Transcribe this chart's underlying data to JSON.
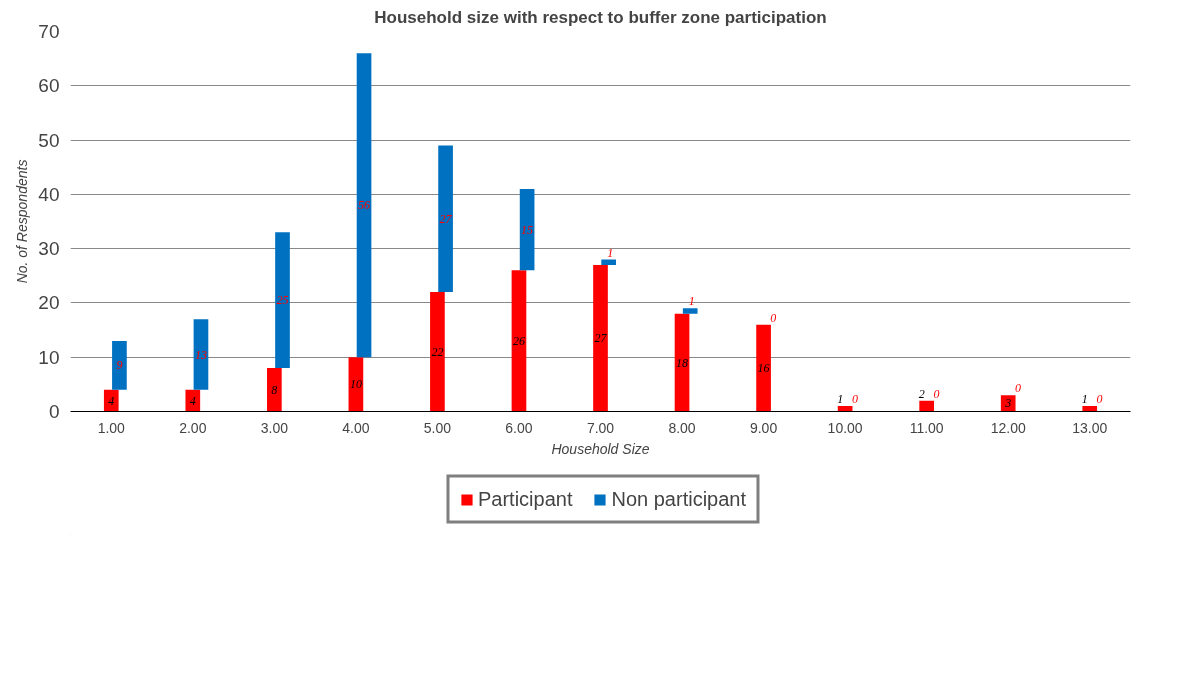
{
  "chart_data": {
    "type": "bar",
    "title": "Household size with respect to buffer zone participation",
    "xlabel": "Household Size",
    "ylabel": "No. of Respondents",
    "categories": [
      "1.00",
      "2.00",
      "3.00",
      "4.00",
      "5.00",
      "6.00",
      "7.00",
      "8.00",
      "9.00",
      "10.00",
      "11.00",
      "12.00",
      "13.00"
    ],
    "stacked": true,
    "series": [
      {
        "name": "Participant",
        "color": "#ff0000",
        "values": [
          4,
          4,
          8,
          10,
          22,
          26,
          27,
          18,
          16,
          1,
          2,
          3,
          1
        ]
      },
      {
        "name": "Non participant",
        "color": "#0070c0",
        "values": [
          9,
          13,
          25,
          56,
          27,
          15,
          1,
          1,
          0,
          0,
          0,
          0,
          0
        ]
      }
    ],
    "ylim": [
      0,
      70
    ],
    "yticks": [
      0,
      10,
      20,
      30,
      40,
      50,
      60,
      70
    ],
    "grid": "y",
    "legend": "bottom",
    "data_labels": true
  }
}
